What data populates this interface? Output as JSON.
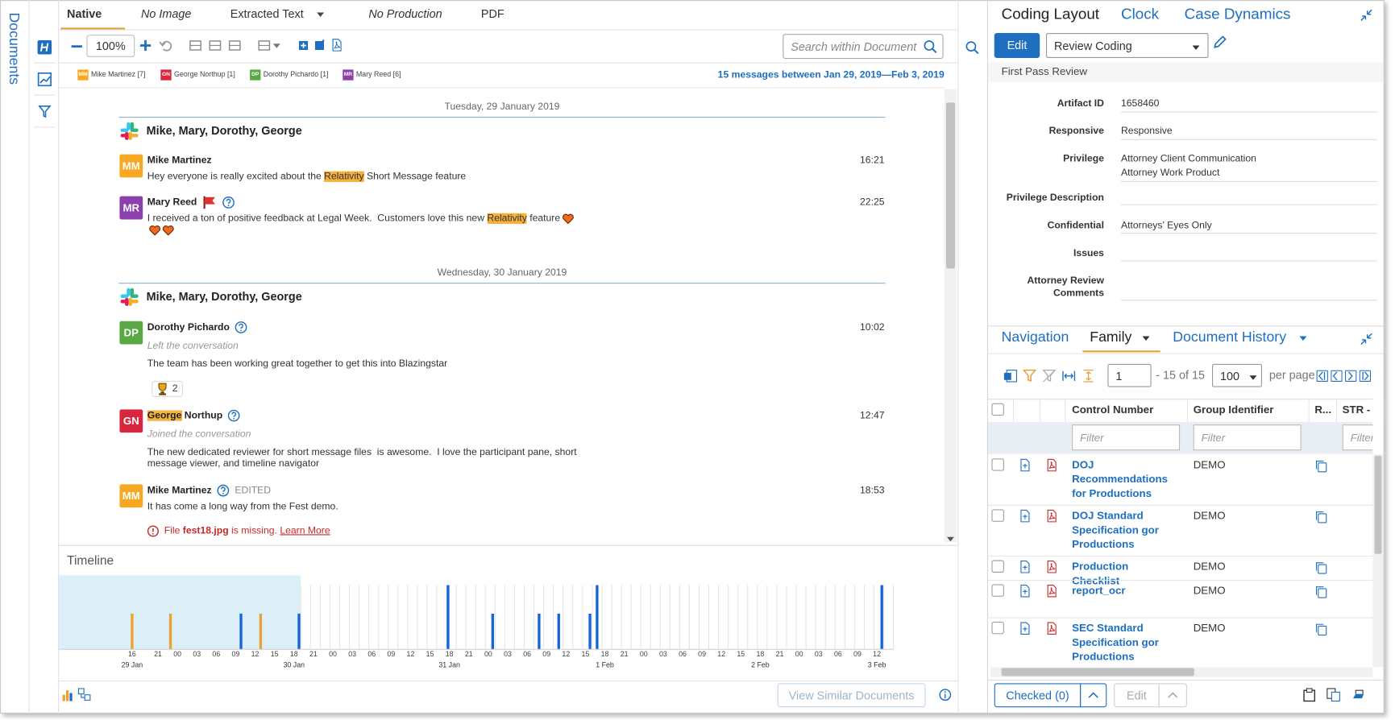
{
  "sidebar": {
    "title": "Documents"
  },
  "viewer": {
    "tabs": [
      "Native",
      "No Image",
      "Extracted Text",
      "No Production",
      "PDF"
    ],
    "zoom": "100%",
    "search_placeholder": "Search within Document",
    "participants": [
      {
        "initials": "MM",
        "name": "Mike Martinez [7]",
        "color": "#f7a823"
      },
      {
        "initials": "GN",
        "name": "George Northup [1]",
        "color": "#d7263d"
      },
      {
        "initials": "DP",
        "name": "Dorothy Pichardo [1]",
        "color": "#5aa843"
      },
      {
        "initials": "MR",
        "name": "Mary Reed [6]",
        "color": "#8e3fae"
      }
    ],
    "summary": "15 messages between Jan 29, 2019—Feb 3, 2019",
    "days": [
      {
        "date": "Tuesday, 29 January 2019",
        "channel": "Mike, Mary, Dorothy, George",
        "messages": [
          {
            "initials": "MM",
            "author": [
              "Mike Martinez"
            ],
            "time": "16:21",
            "text": [
              "Hey everyone is really excited about the ",
              {
                "highlight": "Relativity"
              },
              " Short Message feature"
            ]
          },
          {
            "initials": "MR",
            "author": [
              "Mary Reed"
            ],
            "flagged": true,
            "help": true,
            "time": "22:25",
            "text": [
              "I received a ton of positive feedback at Legal Week.  Customers love this new ",
              {
                "highlight": "Relativity"
              },
              " feature"
            ],
            "hearts": 3
          }
        ]
      },
      {
        "date": "Wednesday, 30 January 2019",
        "channel": "Mike, Mary, Dorothy, George",
        "messages": [
          {
            "initials": "DP",
            "author": [
              "Dorothy Pichardo"
            ],
            "help": true,
            "time": "10:02",
            "note": "Left the conversation",
            "text": [
              "The team has been working great together to get this into Blazingstar"
            ],
            "reaction_count": "2"
          },
          {
            "initials": "GN",
            "author": [
              {
                "highlight": "George"
              },
              " Northup"
            ],
            "help": true,
            "time": "12:47",
            "note": "Joined the conversation",
            "text": [
              "The new dedicated reviewer for short message files  is awesome.  I love the participant pane, short message viewer, and timeline navigator"
            ]
          },
          {
            "initials": "MM",
            "author": [
              "Mike Martinez"
            ],
            "help": true,
            "tag": "EDITED",
            "time": "18:53",
            "text": [
              "It has come a long way from the Fest demo."
            ],
            "error": [
              "File ",
              {
                "bold": "fest18.jpg"
              },
              " is missing. ",
              {
                "link": "Learn More"
              }
            ]
          }
        ]
      }
    ],
    "timeline": {
      "title": "Timeline",
      "ticks": [
        "16",
        "21",
        "00",
        "03",
        "06",
        "09",
        "12",
        "15",
        "18",
        "21",
        "00",
        "03",
        "06",
        "09",
        "12",
        "15",
        "18",
        "21",
        "00",
        "03",
        "06",
        "09",
        "12",
        "15",
        "18",
        "21",
        "00",
        "03",
        "06",
        "09",
        "12",
        "15",
        "18",
        "21",
        "00",
        "03",
        "06",
        "09",
        "12"
      ],
      "dates": [
        "29 Jan",
        "30 Jan",
        "31 Jan",
        "1 Feb",
        "2 Feb",
        "3 Feb"
      ]
    },
    "footer_button": "View Similar Documents"
  },
  "coding": {
    "tabs": [
      "Coding Layout",
      "Clock",
      "Case Dynamics"
    ],
    "edit": "Edit",
    "layout": "Review Coding",
    "section": "First Pass Review",
    "fields": [
      {
        "label": "Artifact ID",
        "value": [
          "1658460"
        ]
      },
      {
        "label": "Responsive",
        "value": [
          "Responsive"
        ]
      },
      {
        "label": "Privilege",
        "value": [
          "Attorney Client Communication",
          "Attorney Work Product"
        ]
      },
      {
        "label": "Privilege Description",
        "value": []
      },
      {
        "label": "Confidential",
        "value": [
          "Attorneys' Eyes Only"
        ]
      },
      {
        "label": "Issues",
        "value": []
      },
      {
        "label": "Attorney Review Comments",
        "value": []
      }
    ]
  },
  "family": {
    "tabs": [
      "Navigation",
      "Family",
      "Document History"
    ],
    "page": "1",
    "page_count": "- 15 of 15",
    "per_page": "100",
    "per_page_label": "per page",
    "columns": [
      "Control Number",
      "Group Identifier",
      "R...",
      "STR -"
    ],
    "filter": "Filter",
    "rows": [
      [
        "DOJ Recommendations for Productions",
        "DEMO"
      ],
      [
        "DOJ Standard Specification gor Productions",
        "DEMO"
      ],
      [
        "Production Checklist",
        "DEMO"
      ],
      [
        "report_ocr",
        "DEMO"
      ],
      [
        "SEC Standard Specification gor Productions",
        "DEMO"
      ]
    ],
    "checked": "Checked (0)",
    "edit": "Edit"
  }
}
